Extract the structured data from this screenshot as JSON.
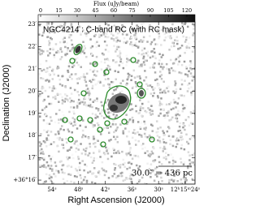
{
  "chart_data": {
    "type": "image",
    "annotation": "NGC4214 : C-band RC (with RC mask)",
    "scalebar": "30.0″ = 436 pc",
    "xlabel": "Right Ascension (J2000)",
    "ylabel": "Declination (J2000)",
    "xlim": [
      57.1,
      21.8
    ],
    "xticks": [
      {
        "value": 54,
        "label": "54ˢ"
      },
      {
        "value": 48,
        "label": "48ˢ"
      },
      {
        "value": 42,
        "label": "42ˢ"
      },
      {
        "value": 36,
        "label": "36ˢ"
      },
      {
        "value": 30,
        "label": "30ˢ"
      },
      {
        "value": 24,
        "label": "12ʰ15ᵐ24ˢ"
      }
    ],
    "ylim": [
      15.82,
      23.11
    ],
    "yticks": [
      {
        "value": 16,
        "label": "+36°16′"
      },
      {
        "value": 17,
        "label": "17′"
      },
      {
        "value": 18,
        "label": "18′"
      },
      {
        "value": 19,
        "label": "19′"
      },
      {
        "value": 20,
        "label": "20′"
      },
      {
        "value": 21,
        "label": "21′"
      },
      {
        "value": 22,
        "label": "22′"
      },
      {
        "value": 23,
        "label": "23′"
      }
    ],
    "colorbar": {
      "label": "Flux (uJy/beam)",
      "lim": [
        -2,
        126.7
      ],
      "ticks": [
        0,
        15,
        30,
        45,
        60,
        75,
        90,
        105,
        120
      ]
    },
    "contour_color": "#2a8a2a"
  }
}
